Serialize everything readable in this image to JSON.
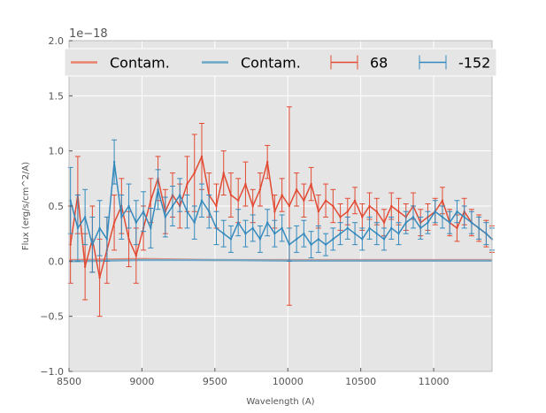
{
  "chart_data": {
    "type": "line",
    "title": "",
    "xlabel": "Wavelength (A)",
    "ylabel": "Flux (erg/s/cm^2/A)",
    "y_offset_text": "1e−18",
    "xlim": [
      8500,
      11400
    ],
    "ylim": [
      -1.0,
      2.0
    ],
    "x_ticks": [
      8500,
      9000,
      9500,
      10000,
      10500,
      11000
    ],
    "x_tick_labels": [
      "8500",
      "9000",
      "9500",
      "10000",
      "10500",
      "11000"
    ],
    "y_ticks": [
      -1.0,
      -0.5,
      0.0,
      0.5,
      1.0,
      1.5,
      2.0
    ],
    "y_tick_labels": [
      "−1.0",
      "−0.5",
      "0.0",
      "0.5",
      "1.0",
      "1.5",
      "2.0"
    ],
    "grid": true,
    "legend_position": "top",
    "legend": [
      {
        "label": "Contam.",
        "kind": "line",
        "color": "#e8826c"
      },
      {
        "label": "Contam.",
        "kind": "line",
        "color": "#6aa6c8"
      },
      {
        "label": "68",
        "kind": "errorbar",
        "color": "#e24a33"
      },
      {
        "label": "-152",
        "kind": "errorbar",
        "color": "#348abd"
      }
    ],
    "colors": {
      "series_68": "#e24a33",
      "series_m152": "#348abd",
      "contam_68": "#e8826c",
      "contam_m152": "#6aa6c8",
      "background": "#e5e5e5",
      "grid": "#ffffff"
    },
    "contamination": [
      {
        "name": "Contam. (68)",
        "x": [
          8500,
          9000,
          9500,
          10000,
          10500,
          11000,
          11400
        ],
        "y": [
          0.01,
          0.02,
          0.01,
          0.01,
          0.01,
          0.01,
          0.01
        ]
      },
      {
        "name": "Contam. (-152)",
        "x": [
          8500,
          9000,
          9500,
          10000,
          10500,
          11000,
          11400
        ],
        "y": [
          0.0,
          0.01,
          0.01,
          0.005,
          0.005,
          0.005,
          0.005
        ]
      }
    ],
    "series": [
      {
        "name": "68",
        "x": [
          8510,
          8560,
          8610,
          8660,
          8710,
          8760,
          8810,
          8860,
          8910,
          8960,
          9010,
          9060,
          9110,
          9160,
          9210,
          9260,
          9310,
          9360,
          9410,
          9460,
          9510,
          9560,
          9610,
          9660,
          9710,
          9760,
          9810,
          9860,
          9910,
          9960,
          10010,
          10060,
          10110,
          10160,
          10210,
          10260,
          10310,
          10360,
          10410,
          10460,
          10510,
          10560,
          10610,
          10660,
          10710,
          10760,
          10810,
          10860,
          10910,
          10960,
          11010,
          11060,
          11110,
          11160,
          11210,
          11260,
          11310,
          11360,
          11400
        ],
        "y": [
          0.15,
          0.6,
          -0.05,
          0.2,
          -0.15,
          0.1,
          0.35,
          0.5,
          0.2,
          0.05,
          0.3,
          0.55,
          0.75,
          0.45,
          0.6,
          0.5,
          0.7,
          0.8,
          0.95,
          0.6,
          0.5,
          0.8,
          0.6,
          0.55,
          0.7,
          0.5,
          0.65,
          0.9,
          0.45,
          0.6,
          0.5,
          0.65,
          0.55,
          0.7,
          0.45,
          0.55,
          0.5,
          0.4,
          0.45,
          0.55,
          0.4,
          0.5,
          0.45,
          0.35,
          0.5,
          0.45,
          0.4,
          0.5,
          0.35,
          0.4,
          0.45,
          0.55,
          0.35,
          0.3,
          0.45,
          0.35,
          0.3,
          0.25,
          0.2
        ],
        "err": [
          0.35,
          0.35,
          0.3,
          0.3,
          0.35,
          0.3,
          0.25,
          0.25,
          0.25,
          0.25,
          0.2,
          0.2,
          0.2,
          0.2,
          0.2,
          0.2,
          0.25,
          0.35,
          0.3,
          0.2,
          0.2,
          0.2,
          0.2,
          0.2,
          0.2,
          0.15,
          0.15,
          0.15,
          0.15,
          0.15,
          0.9,
          0.15,
          0.15,
          0.15,
          0.15,
          0.15,
          0.15,
          0.12,
          0.12,
          0.12,
          0.12,
          0.12,
          0.12,
          0.12,
          0.12,
          0.12,
          0.12,
          0.12,
          0.12,
          0.12,
          0.12,
          0.12,
          0.12,
          0.12,
          0.12,
          0.12,
          0.12,
          0.12,
          0.12
        ]
      },
      {
        "name": "-152",
        "x": [
          8510,
          8560,
          8610,
          8660,
          8710,
          8760,
          8810,
          8860,
          8910,
          8960,
          9010,
          9060,
          9110,
          9160,
          9210,
          9260,
          9310,
          9360,
          9410,
          9460,
          9510,
          9560,
          9610,
          9660,
          9710,
          9760,
          9810,
          9860,
          9910,
          9960,
          10010,
          10060,
          10110,
          10160,
          10210,
          10260,
          10310,
          10360,
          10410,
          10460,
          10510,
          10560,
          10610,
          10660,
          10710,
          10760,
          10810,
          10860,
          10910,
          10960,
          11010,
          11060,
          11110,
          11160,
          11210,
          11260,
          11310,
          11360,
          11400
        ],
        "y": [
          0.55,
          0.3,
          0.4,
          0.15,
          0.3,
          0.2,
          0.9,
          0.4,
          0.5,
          0.35,
          0.45,
          0.3,
          0.65,
          0.4,
          0.5,
          0.6,
          0.45,
          0.35,
          0.55,
          0.45,
          0.3,
          0.25,
          0.2,
          0.35,
          0.25,
          0.3,
          0.2,
          0.35,
          0.25,
          0.3,
          0.15,
          0.2,
          0.25,
          0.15,
          0.2,
          0.15,
          0.2,
          0.25,
          0.3,
          0.25,
          0.2,
          0.3,
          0.25,
          0.2,
          0.3,
          0.25,
          0.35,
          0.4,
          0.3,
          0.35,
          0.45,
          0.4,
          0.35,
          0.45,
          0.4,
          0.35,
          0.3,
          0.25,
          0.2
        ],
        "err": [
          0.3,
          0.3,
          0.25,
          0.25,
          0.25,
          0.2,
          0.2,
          0.2,
          0.2,
          0.2,
          0.18,
          0.18,
          0.18,
          0.18,
          0.18,
          0.15,
          0.15,
          0.15,
          0.15,
          0.15,
          0.15,
          0.12,
          0.12,
          0.12,
          0.12,
          0.12,
          0.12,
          0.12,
          0.12,
          0.12,
          0.15,
          0.12,
          0.12,
          0.12,
          0.12,
          0.1,
          0.1,
          0.1,
          0.1,
          0.1,
          0.1,
          0.1,
          0.1,
          0.1,
          0.1,
          0.1,
          0.1,
          0.1,
          0.1,
          0.1,
          0.1,
          0.1,
          0.1,
          0.1,
          0.1,
          0.1,
          0.1,
          0.1,
          0.1
        ]
      }
    ]
  }
}
